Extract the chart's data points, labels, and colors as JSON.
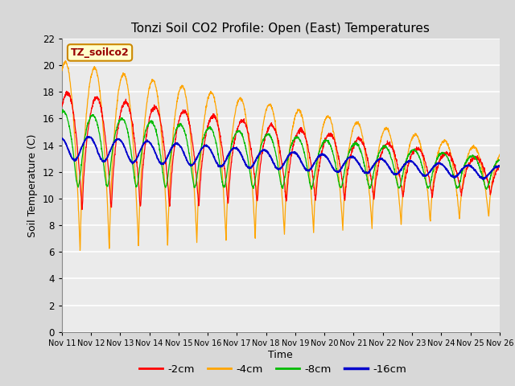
{
  "title": "Tonzi Soil CO2 Profile: Open (East) Temperatures",
  "xlabel": "Time",
  "ylabel": "Soil Temperature (C)",
  "ylim": [
    0,
    22
  ],
  "yticks": [
    0,
    2,
    4,
    6,
    8,
    10,
    12,
    14,
    16,
    18,
    20,
    22
  ],
  "xtick_labels": [
    "Nov 11",
    "Nov 12",
    "Nov 13",
    "Nov 14",
    "Nov 15",
    "Nov 16",
    "Nov 17",
    "Nov 18",
    "Nov 19",
    "Nov 20",
    "Nov 21",
    "Nov 22",
    "Nov 23",
    "Nov 24",
    "Nov 25",
    "Nov 26"
  ],
  "legend_label": "TZ_soilco2",
  "series_labels": [
    "-2cm",
    "-4cm",
    "-8cm",
    "-16cm"
  ],
  "series_colors": [
    "#ff0000",
    "#ffa500",
    "#00bb00",
    "#0000cc"
  ],
  "bg_color": "#d8d8d8",
  "plot_bg_color": "#ebebeb",
  "grid_color": "#ffffff",
  "n_days": 15,
  "samples_per_day": 144
}
